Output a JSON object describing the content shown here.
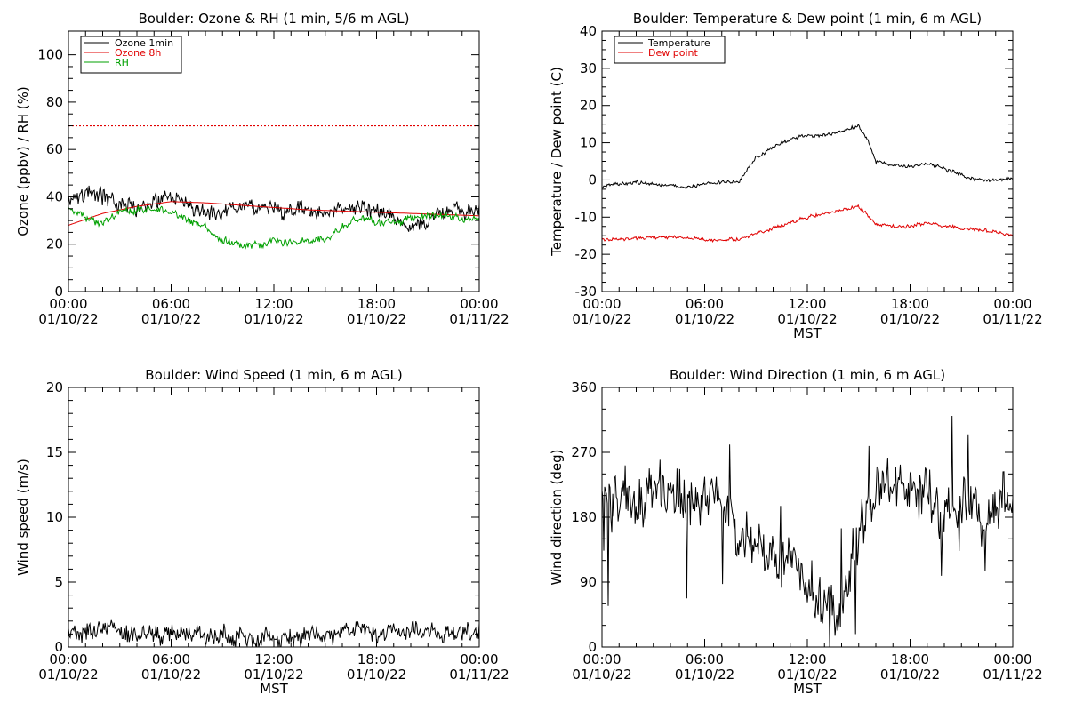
{
  "chart_data": [
    {
      "type": "line",
      "title": "Boulder: Ozone & RH (1 min, 5/6 m AGL)",
      "ylabel": "Ozone (ppbv) / RH (%)",
      "xlabel": "",
      "xlim": [
        0,
        24
      ],
      "ylim": [
        0,
        110
      ],
      "x_ticks": [
        0,
        6,
        12,
        18,
        24
      ],
      "x_tick_labels": [
        "00:00\n01/10/22",
        "06:00\n01/10/22",
        "12:00\n01/10/22",
        "18:00\n01/10/22",
        "00:00\n01/11/22"
      ],
      "y_ticks": [
        0,
        20,
        40,
        60,
        80,
        100
      ],
      "legend": {
        "position": "top-left",
        "entries": [
          {
            "label": "Ozone 1min",
            "color": "#000000"
          },
          {
            "label": "Ozone 8h",
            "color": "#e00000"
          },
          {
            "label": "RH",
            "color": "#00a000"
          }
        ]
      },
      "reference_line": {
        "y": 70,
        "color": "#e00000",
        "style": "dotted"
      },
      "series": [
        {
          "name": "Ozone 1min",
          "color": "#000000",
          "noise": 2.5,
          "x": [
            0,
            1,
            2,
            3,
            4,
            5,
            6,
            7,
            8,
            9,
            10,
            11,
            12,
            13,
            14,
            15,
            16,
            17,
            18,
            19,
            20,
            21,
            22,
            23,
            24
          ],
          "values": [
            40,
            42,
            40,
            37,
            36,
            38,
            39,
            37,
            34,
            34,
            37,
            36,
            35,
            34,
            34,
            33,
            35,
            35,
            34,
            30,
            26,
            30,
            34,
            34,
            34
          ]
        },
        {
          "name": "Ozone 8h",
          "color": "#e00000",
          "noise": 0,
          "x": [
            0,
            2,
            4,
            6,
            8,
            10,
            12,
            14,
            16,
            18,
            20,
            22,
            24
          ],
          "values": [
            28,
            33,
            36,
            38,
            37.5,
            36.5,
            35.5,
            34.5,
            34,
            33.5,
            33,
            32.5,
            32
          ]
        },
        {
          "name": "RH",
          "color": "#00a000",
          "noise": 1.2,
          "x": [
            0,
            1,
            2,
            3,
            4,
            5,
            6,
            7,
            8,
            8.5,
            9,
            10,
            11,
            12,
            13,
            14,
            15,
            16,
            17,
            18,
            19,
            20,
            21,
            22,
            23,
            24
          ],
          "values": [
            35,
            31,
            29,
            33,
            34,
            35,
            33,
            30,
            28,
            24,
            22,
            20,
            19,
            21,
            21,
            22,
            22,
            27,
            31,
            30,
            29,
            31,
            32,
            32,
            31,
            30
          ]
        }
      ]
    },
    {
      "type": "line",
      "title": "Boulder: Temperature & Dew point (1 min, 6 m AGL)",
      "ylabel": "Temperature / Dew point (C)",
      "xlabel": "MST",
      "xlim": [
        0,
        24
      ],
      "ylim": [
        -30,
        40
      ],
      "x_ticks": [
        0,
        6,
        12,
        18,
        24
      ],
      "x_tick_labels": [
        "00:00\n01/10/22",
        "06:00\n01/10/22",
        "12:00\n01/10/22",
        "18:00\n01/10/22",
        "00:00\n01/11/22"
      ],
      "y_ticks": [
        -30,
        -20,
        -10,
        0,
        10,
        20,
        30,
        40
      ],
      "legend": {
        "position": "top-left",
        "entries": [
          {
            "label": "Temperature",
            "color": "#000000"
          },
          {
            "label": "Dew point",
            "color": "#e00000"
          }
        ]
      },
      "series": [
        {
          "name": "Temperature",
          "color": "#000000",
          "noise": 0.35,
          "x": [
            0,
            1,
            2,
            3,
            4,
            5,
            6,
            7,
            8,
            9,
            10,
            11,
            12,
            13,
            14,
            15,
            15.5,
            16,
            17,
            18,
            19,
            20,
            21,
            22,
            23,
            24
          ],
          "values": [
            -2,
            -1,
            -0.5,
            -1,
            -1.5,
            -2,
            -1,
            -0.5,
            -0.5,
            6,
            9,
            11,
            12,
            12,
            13,
            14.5,
            11,
            5,
            4,
            3.5,
            4.5,
            3,
            1.5,
            0,
            0,
            0.5
          ]
        },
        {
          "name": "Dew point",
          "color": "#e00000",
          "noise": 0.35,
          "x": [
            0,
            1,
            2,
            3,
            4,
            5,
            6,
            7,
            8,
            9,
            10,
            11,
            12,
            13,
            14,
            15,
            15.5,
            16,
            17,
            18,
            19,
            20,
            21,
            22,
            23,
            24
          ],
          "values": [
            -16,
            -16,
            -15.5,
            -15.5,
            -15.5,
            -15.5,
            -16,
            -16,
            -16,
            -14.5,
            -13,
            -11.5,
            -10,
            -9,
            -8,
            -7,
            -9.5,
            -12,
            -12.5,
            -12.5,
            -11.5,
            -12.5,
            -13,
            -13.5,
            -14,
            -15
          ]
        }
      ]
    },
    {
      "type": "line",
      "title": "Boulder: Wind Speed (1 min, 6 m AGL)",
      "ylabel": "Wind speed (m/s)",
      "xlabel": "MST",
      "xlim": [
        0,
        24
      ],
      "ylim": [
        0,
        20
      ],
      "x_ticks": [
        0,
        6,
        12,
        18,
        24
      ],
      "x_tick_labels": [
        "00:00\n01/10/22",
        "06:00\n01/10/22",
        "12:00\n01/10/22",
        "18:00\n01/10/22",
        "00:00\n01/11/22"
      ],
      "y_ticks": [
        0,
        5,
        10,
        15,
        20
      ],
      "series": [
        {
          "name": "",
          "color": "#000000",
          "noise": 0.55,
          "x": [
            0,
            2,
            4,
            6,
            8,
            10,
            12,
            14,
            15.5,
            16,
            18,
            20,
            22,
            24
          ],
          "values": [
            1.0,
            1.1,
            1.0,
            1.0,
            0.9,
            0.7,
            0.6,
            0.8,
            1.1,
            1.6,
            1.3,
            1.2,
            1.1,
            1.2
          ]
        }
      ]
    },
    {
      "type": "line",
      "title": "Boulder: Wind Direction (1 min, 6 m AGL)",
      "ylabel": "Wind direction (deg)",
      "xlabel": "MST",
      "xlim": [
        0,
        24
      ],
      "ylim": [
        0,
        360
      ],
      "x_ticks": [
        0,
        6,
        12,
        18,
        24
      ],
      "x_tick_labels": [
        "00:00\n01/10/22",
        "06:00\n01/10/22",
        "12:00\n01/10/22",
        "18:00\n01/10/22",
        "00:00\n01/11/22"
      ],
      "y_ticks": [
        0,
        90,
        180,
        270,
        360
      ],
      "series": [
        {
          "name": "",
          "color": "#000000",
          "noise": 28,
          "x": [
            0,
            1,
            2,
            3,
            4,
            5,
            6,
            7,
            8,
            9,
            10,
            11,
            12,
            13,
            14,
            15,
            16,
            17,
            18,
            19,
            20,
            21,
            22,
            23,
            24
          ],
          "values": [
            200,
            210,
            190,
            215,
            225,
            190,
            215,
            205,
            165,
            140,
            125,
            115,
            90,
            60,
            45,
            160,
            230,
            230,
            225,
            210,
            185,
            200,
            195,
            190,
            200
          ]
        }
      ]
    }
  ]
}
